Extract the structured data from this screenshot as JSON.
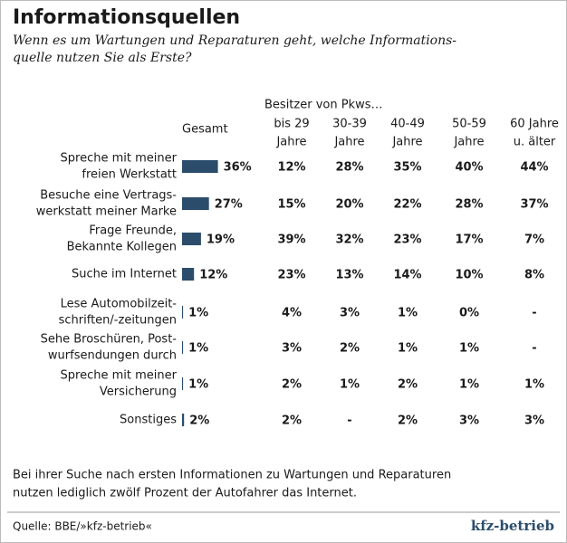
{
  "chart_data": {
    "type": "bar",
    "title": "Informationsquellen",
    "subtitle": [
      "Wenn es um Wartungen und Reparaturen geht, welche Informations-",
      "quelle nutzen Sie als Erste?"
    ],
    "value_header": "Gesamt",
    "categories": [
      [
        "Spreche mit meiner",
        "freien Werkstatt"
      ],
      [
        "Besuche eine Vertrags-",
        "werkstatt meiner Marke"
      ],
      [
        "Frage Freunde,",
        "Bekannte Kollegen"
      ],
      [
        "Suche im Internet"
      ],
      [
        "Lese Automobilzeit-",
        "schriften/-zeitungen"
      ],
      [
        "Sehe Broschüren, Post-",
        "wurfsendungen durch"
      ],
      [
        "Spreche mit meiner",
        "Versicherung"
      ],
      [
        "Sonstiges"
      ]
    ],
    "values": [
      36,
      27,
      19,
      12,
      1,
      1,
      1,
      2
    ],
    "value_labels": [
      "36%",
      "27%",
      "19%",
      "12%",
      "1%",
      "1%",
      "1%",
      "2%"
    ],
    "color": "#2b4d6b"
  },
  "table": {
    "group_header": "Besitzer von Pkws…",
    "columns": [
      [
        "bis 29",
        "Jahre"
      ],
      [
        "30-39",
        "Jahre"
      ],
      [
        "40-49",
        "Jahre"
      ],
      [
        "50-59",
        "Jahre"
      ],
      [
        "60 Jahre",
        "u. älter"
      ]
    ],
    "rows": [
      [
        "12%",
        "28%",
        "35%",
        "40%",
        "44%"
      ],
      [
        "15%",
        "20%",
        "22%",
        "28%",
        "37%"
      ],
      [
        "39%",
        "32%",
        "23%",
        "17%",
        "7%"
      ],
      [
        "23%",
        "13%",
        "14%",
        "10%",
        "8%"
      ],
      [
        "4%",
        "3%",
        "1%",
        "0%",
        "-"
      ],
      [
        "3%",
        "2%",
        "1%",
        "1%",
        "-"
      ],
      [
        "2%",
        "1%",
        "2%",
        "1%",
        "1%"
      ],
      [
        "2%",
        "-",
        "2%",
        "3%",
        "3%"
      ]
    ]
  },
  "footnote": [
    "Bei ihrer Suche nach ersten Informationen zu Wartungen und Reparaturen",
    "nutzen lediglich zwölf Prozent der Autofahrer das Internet."
  ],
  "source": "Quelle: BBE/»kfz-betrieb«",
  "logo": "kfz-betrieb"
}
